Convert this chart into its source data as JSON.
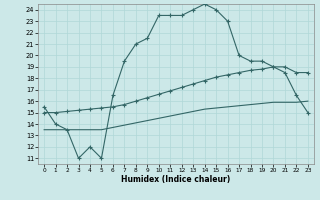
{
  "xlabel": "Humidex (Indice chaleur)",
  "bg_color": "#cce8e8",
  "grid_color": "#b0d8d8",
  "line_color": "#336666",
  "xlim": [
    -0.5,
    23.5
  ],
  "ylim": [
    10.5,
    24.5
  ],
  "xticks": [
    0,
    1,
    2,
    3,
    4,
    5,
    6,
    7,
    8,
    9,
    10,
    11,
    12,
    13,
    14,
    15,
    16,
    17,
    18,
    19,
    20,
    21,
    22,
    23
  ],
  "yticks": [
    11,
    12,
    13,
    14,
    15,
    16,
    17,
    18,
    19,
    20,
    21,
    22,
    23,
    24
  ],
  "line1_x": [
    0,
    1,
    2,
    3,
    4,
    5,
    6,
    7,
    8,
    9,
    10,
    11,
    12,
    13,
    14,
    15,
    16,
    17,
    18,
    19,
    20,
    21,
    22,
    23
  ],
  "line1_y": [
    15.5,
    14.0,
    13.5,
    11.0,
    12.0,
    11.0,
    16.5,
    19.5,
    21.0,
    21.5,
    23.5,
    23.5,
    23.5,
    24.0,
    24.5,
    24.0,
    23.0,
    20.0,
    19.5,
    19.5,
    19.0,
    18.5,
    16.5,
    15.0
  ],
  "line2_x": [
    0,
    1,
    2,
    3,
    4,
    5,
    6,
    7,
    8,
    9,
    10,
    11,
    12,
    13,
    14,
    15,
    16,
    17,
    18,
    19,
    20,
    21,
    22,
    23
  ],
  "line2_y": [
    15.0,
    15.0,
    15.1,
    15.2,
    15.3,
    15.4,
    15.5,
    15.7,
    16.0,
    16.3,
    16.6,
    16.9,
    17.2,
    17.5,
    17.8,
    18.1,
    18.3,
    18.5,
    18.7,
    18.8,
    19.0,
    19.0,
    18.5,
    18.5
  ],
  "line3_x": [
    0,
    1,
    2,
    3,
    4,
    5,
    6,
    7,
    8,
    9,
    10,
    11,
    12,
    13,
    14,
    15,
    16,
    17,
    18,
    19,
    20,
    21,
    22,
    23
  ],
  "line3_y": [
    13.5,
    13.5,
    13.5,
    13.5,
    13.5,
    13.5,
    13.7,
    13.9,
    14.1,
    14.3,
    14.5,
    14.7,
    14.9,
    15.1,
    15.3,
    15.4,
    15.5,
    15.6,
    15.7,
    15.8,
    15.9,
    15.9,
    15.9,
    16.0
  ]
}
